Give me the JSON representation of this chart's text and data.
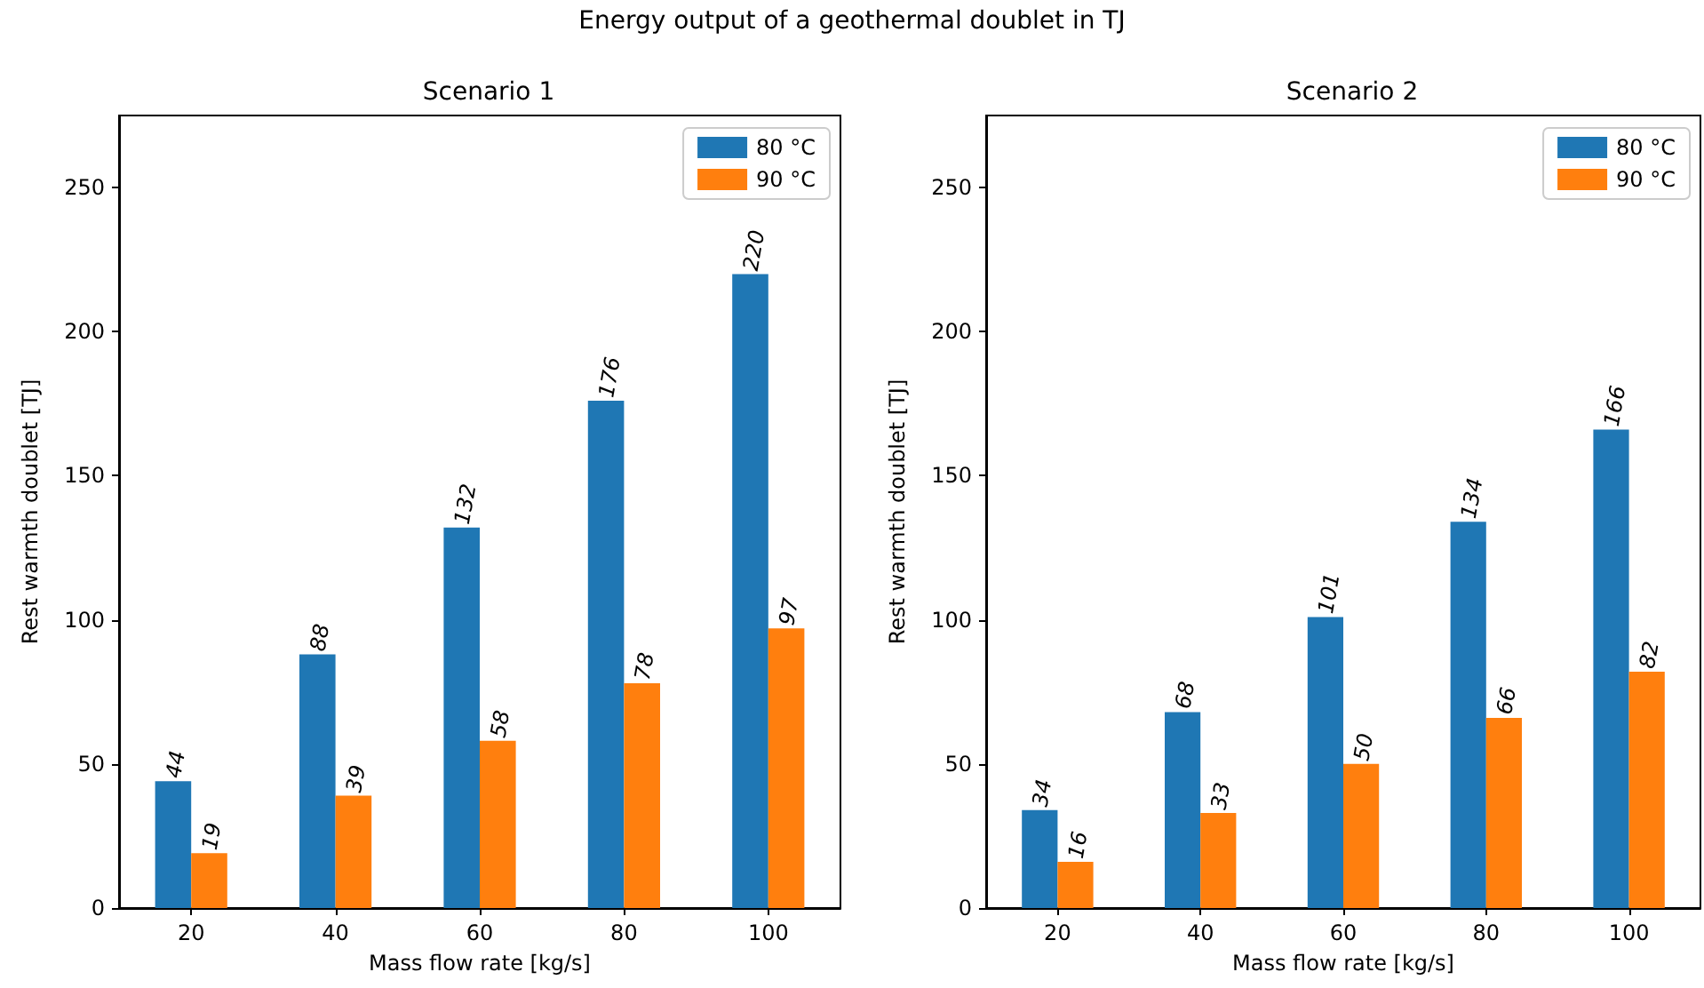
{
  "chart_data": [
    {
      "type": "bar",
      "title": "Scenario 1",
      "annotations": [
        "Energy output of a geothermal doublet in TJ"
      ],
      "xlabel": "Mass flow rate [kg/s]",
      "ylabel": "Rest warmth doublet [TJ]",
      "categories": [
        "20",
        "40",
        "60",
        "80",
        "100"
      ],
      "series": [
        {
          "name": "80 °C",
          "color": "#1f77b4",
          "values": [
            44,
            88,
            132,
            176,
            220
          ]
        },
        {
          "name": "90 °C",
          "color": "#ff7f0e",
          "values": [
            19,
            39,
            58,
            78,
            97
          ]
        }
      ],
      "ylim": [
        0,
        275
      ],
      "yticks": [
        0,
        50,
        100,
        150,
        200,
        250
      ],
      "data_labels": true,
      "legend": "top right",
      "grid": false
    },
    {
      "type": "bar",
      "title": "Scenario 2",
      "xlabel": "Mass flow rate [kg/s]",
      "ylabel": "Rest warmth doublet [TJ]",
      "categories": [
        "20",
        "40",
        "60",
        "80",
        "100"
      ],
      "series": [
        {
          "name": "80 °C",
          "color": "#1f77b4",
          "values": [
            34,
            68,
            101,
            134,
            166
          ]
        },
        {
          "name": "90 °C",
          "color": "#ff7f0e",
          "values": [
            16,
            33,
            50,
            66,
            82
          ]
        }
      ],
      "ylim": [
        0,
        275
      ],
      "yticks": [
        0,
        50,
        100,
        150,
        200,
        250
      ],
      "data_labels": true,
      "legend": "top right",
      "grid": false
    }
  ]
}
